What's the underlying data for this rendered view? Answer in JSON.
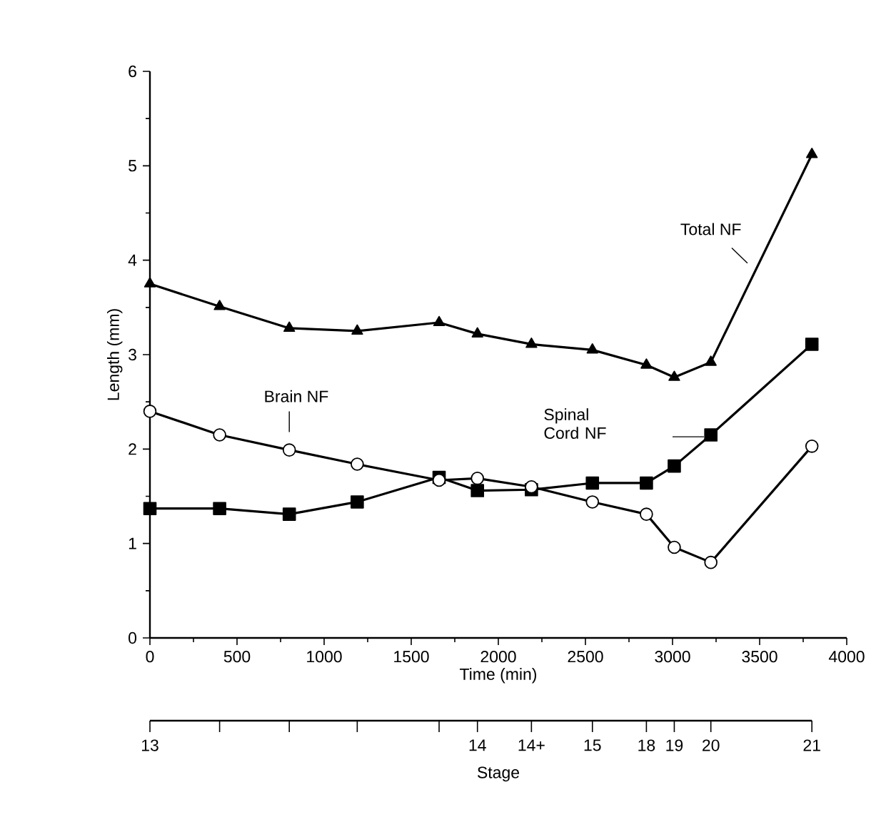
{
  "chart_data": {
    "type": "line",
    "xlabel": "Time (min)",
    "ylabel": "Length (mm)",
    "x2label": "Stage",
    "x": [
      0,
      400,
      800,
      1190,
      1660,
      1880,
      2190,
      2540,
      2850,
      3010,
      3220,
      3800
    ],
    "xlim": [
      0,
      4000
    ],
    "xticks": [
      0,
      500,
      1000,
      1500,
      2000,
      2500,
      3000,
      3500,
      4000
    ],
    "ylim": [
      0,
      6
    ],
    "yticks": [
      0,
      1,
      2,
      3,
      4,
      5,
      6
    ],
    "annotations": [
      {
        "text": "13",
        "x": 0
      },
      {
        "text": "14",
        "x": 1880
      },
      {
        "text": "14+",
        "x": 2190
      },
      {
        "text": "15",
        "x": 2540
      },
      {
        "text": "18",
        "x": 2850
      },
      {
        "text": "19",
        "x": 3010
      },
      {
        "text": "20",
        "x": 3220
      },
      {
        "text": "21",
        "x": 3800
      }
    ],
    "line_style": "solid",
    "grid": false,
    "legend": false,
    "series": [
      {
        "name": "Total NF",
        "color": "#000000",
        "marker": "triangle",
        "values": [
          3.75,
          3.51,
          3.28,
          3.25,
          3.34,
          3.22,
          3.11,
          3.05,
          2.89,
          2.76,
          2.92,
          5.12
        ]
      },
      {
        "name": "Brain NF",
        "color": "#000000",
        "marker": "circle",
        "values": [
          2.4,
          2.15,
          1.99,
          1.84,
          1.67,
          1.69,
          1.6,
          1.44,
          1.31,
          0.96,
          0.8,
          2.03
        ]
      },
      {
        "name": "Spinal Cord NF",
        "color": "#000000",
        "marker": "square",
        "values": [
          1.37,
          1.37,
          1.31,
          1.44,
          1.7,
          1.56,
          1.57,
          1.64,
          1.64,
          1.82,
          2.15,
          3.11
        ]
      }
    ]
  }
}
